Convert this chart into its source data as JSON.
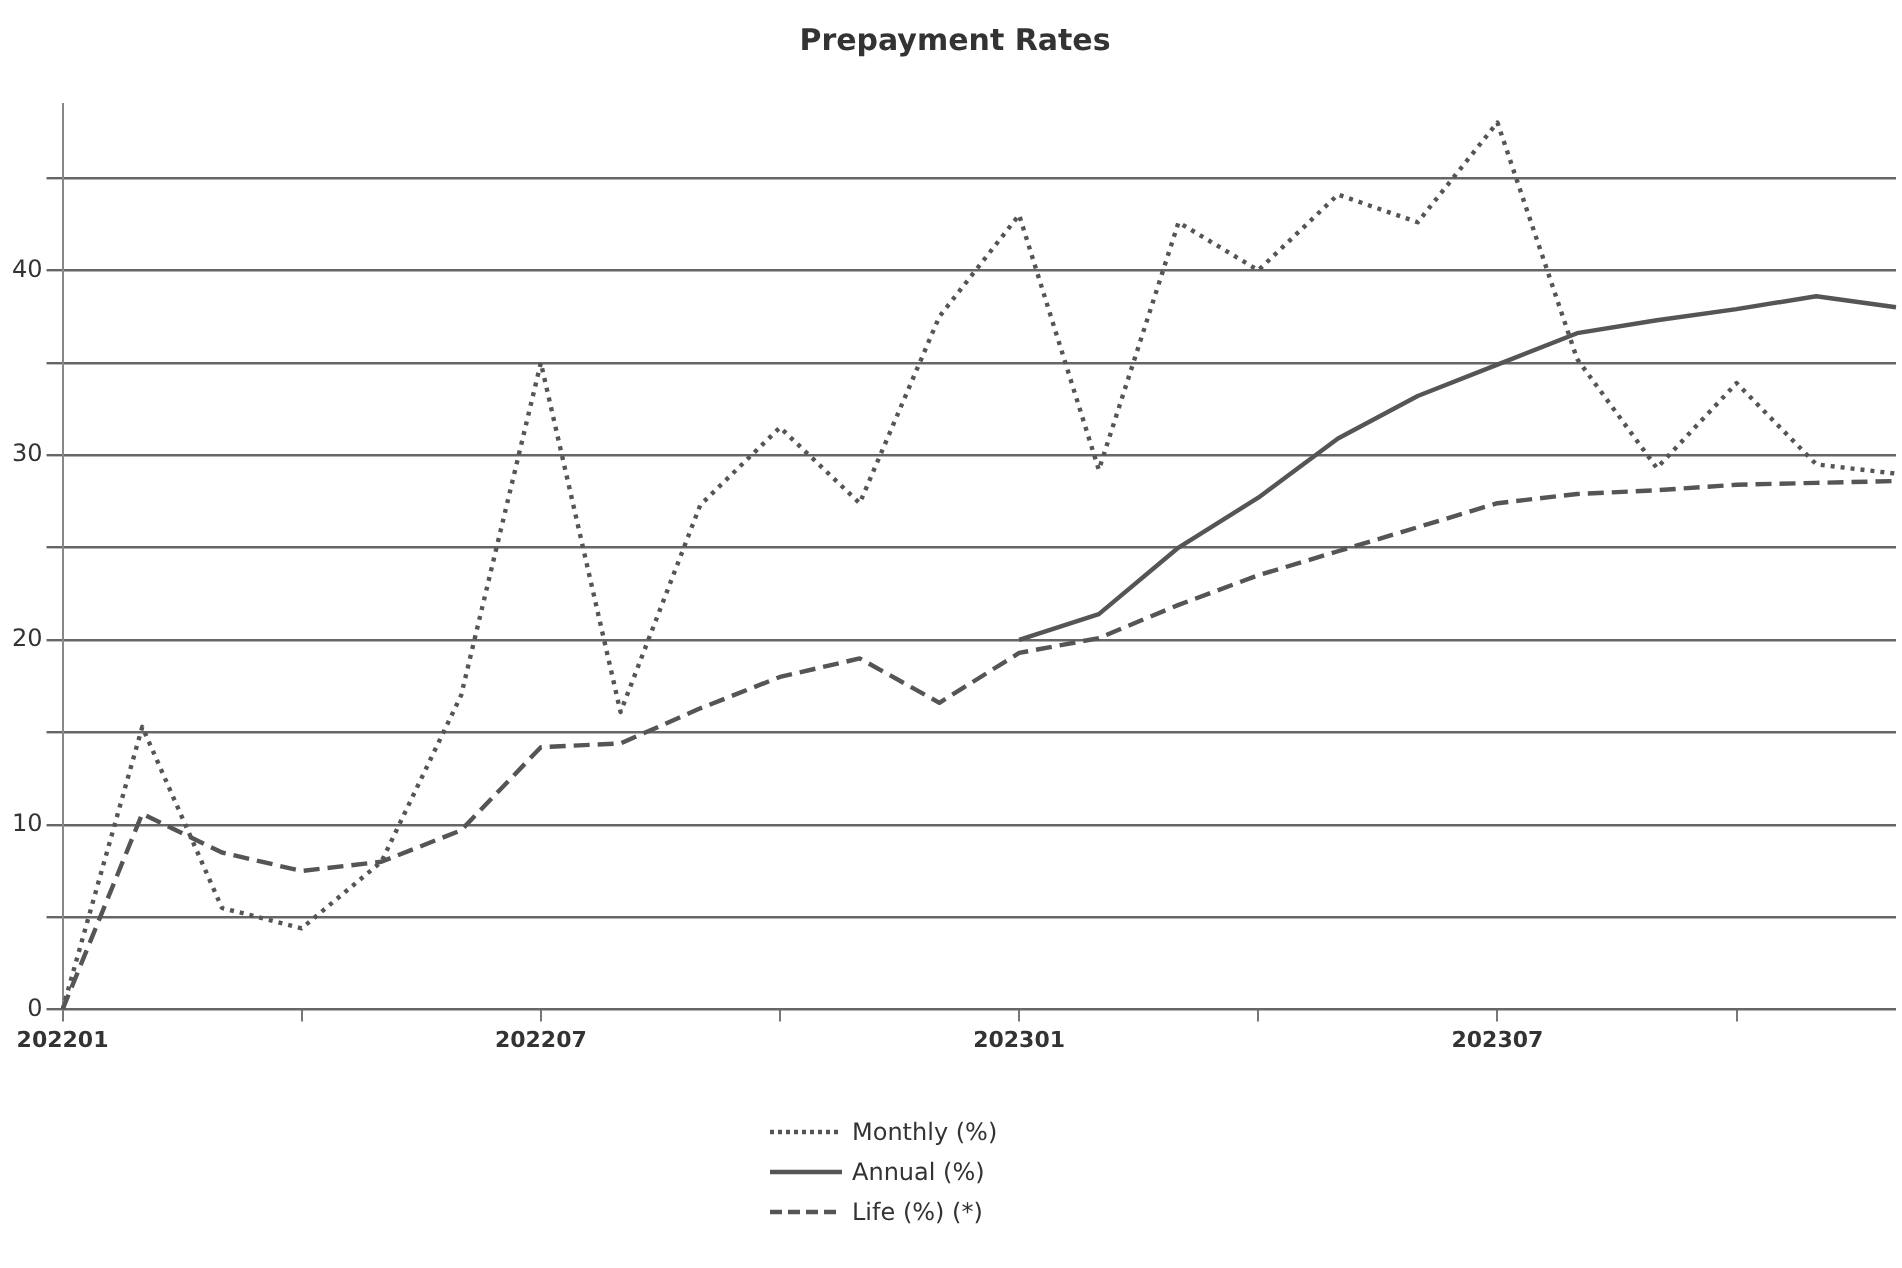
{
  "chart_data": {
    "type": "line",
    "title": "Prepayment Rates",
    "categories": [
      "202201",
      null,
      null,
      null,
      null,
      null,
      "202207",
      null,
      null,
      null,
      null,
      null,
      "202301",
      null,
      null,
      null,
      null,
      null,
      "202307",
      null,
      null,
      null,
      null,
      null
    ],
    "series": [
      {
        "name": "Monthly (%)",
        "color": "#555555",
        "line_style": "dotted",
        "values": [
          0,
          15.3,
          5.5,
          4.4,
          8,
          17,
          35,
          16.1,
          27.3,
          31.5,
          27.4,
          37.5,
          43,
          29.2,
          42.6,
          40,
          44.1,
          42.6,
          48,
          35.2,
          29.3,
          33.9,
          29.5,
          29
        ]
      },
      {
        "name": "Annual (%)",
        "color": "#555555",
        "line_style": "solid",
        "values": [
          null,
          null,
          null,
          null,
          null,
          null,
          null,
          null,
          null,
          null,
          null,
          null,
          20,
          21.4,
          25,
          27.7,
          30.9,
          33.2,
          34.9,
          36.6,
          37.3,
          37.9,
          38.6,
          38
        ]
      },
      {
        "name": "Life (%) (*)",
        "color": "#555555",
        "line_style": "dashed",
        "values": [
          0,
          10.6,
          8.5,
          7.5,
          8,
          9.7,
          14.2,
          14.4,
          16.3,
          18,
          19,
          16.6,
          19.3,
          20.1,
          21.9,
          23.5,
          24.8,
          26.1,
          27.4,
          27.9,
          28.1,
          28.4,
          28.5,
          28.6
        ]
      }
    ],
    "ylim": [
      0,
      49
    ],
    "yticks": [
      0,
      {
        "value": 5,
        "label": null
      },
      10,
      {
        "value": 15,
        "label": null
      },
      20,
      {
        "value": 25,
        "label": null
      },
      30,
      {
        "value": 35,
        "label": null
      },
      40,
      {
        "value": 45,
        "label": null
      }
    ],
    "grid": "y",
    "legend": "bottom",
    "marker": "none"
  }
}
